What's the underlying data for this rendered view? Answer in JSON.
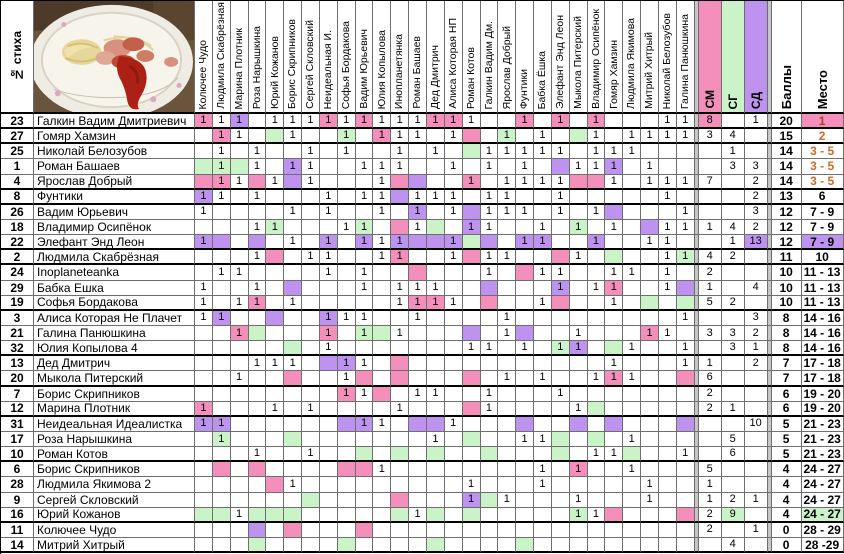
{
  "corner_label": "№ стиха",
  "photo_caption": "plate-with-spaghetti-sausage-ketchup",
  "judges": [
    "Колючее Чудо",
    "Людмила Скабрёзная",
    "Марина Плотник",
    "Роза Нарышкина",
    "Юрий Кожанов",
    "Борис Скрипников",
    "Сергей Скловский",
    "Неидеальная И.",
    "Софья Бордакова",
    "Вадим Юрьевич",
    "Юлия Копылова",
    "Инопланетянка",
    "Роман Башаев",
    "Дед Дмитрич",
    "Алиса Которая НП",
    "Роман Котов",
    "Галкин Вадим Дм.",
    "Ярослав Добрый",
    "Фунтики",
    "Бабка Ёшка",
    "Элефант Энд Леон",
    "Мыкола Питерский",
    "Владимир Осипёнок",
    "Гомяр Хамзин",
    "Людмила Якимова",
    "Митрий Хитрый",
    "Николай Белозубов",
    "Галина Панюшкина"
  ],
  "summary_headers": {
    "sm": "СМ",
    "sg": "СГ",
    "sd": "СД",
    "score": "Баллы",
    "place": "Место"
  },
  "colors": {
    "pink": "#F48FBB",
    "green": "#CBF3C8",
    "purple": "#BE93F0",
    "grey": "#c6c6c6",
    "place_first_text": "#A6442D",
    "place_top_text": "#CE6C28"
  },
  "legend_note": "vote cell tokens: 1=vote, p=pink(СМ), g=green(СГ), u=purple(СД)",
  "rows": [
    {
      "num": "23",
      "name": "Галкин Вадим Дмитриевич",
      "votes": [
        "1p",
        "1",
        "1u",
        "",
        "1",
        "1",
        "1",
        "1p",
        "1",
        "1p",
        "1",
        "1",
        "1",
        "1p",
        "1p",
        "1",
        "",
        "",
        "1p",
        "",
        "1p",
        "",
        "1p",
        "",
        "",
        "",
        "1",
        "1"
      ],
      "sm": "8",
      "sg": "",
      "sd": "1",
      "sm_hl": true,
      "sg_hl": false,
      "sd_hl": false,
      "score": "20",
      "place": "1",
      "place_cls": "pl-1",
      "group_end": true
    },
    {
      "num": "27",
      "name": "Гомяр Хамзин",
      "votes": [
        "",
        "1p",
        "1",
        "",
        "g",
        "1",
        "",
        "",
        "1g",
        "",
        "1p",
        "1",
        "1",
        "",
        "1",
        "p",
        "",
        "1g",
        "",
        "1",
        "",
        "g",
        "1",
        "",
        "1",
        "1",
        "1",
        "1"
      ],
      "sm": "3",
      "sg": "4",
      "sd": "",
      "sm_hl": false,
      "sg_hl": false,
      "sd_hl": false,
      "score": "15",
      "place": "2",
      "place_cls": "pl-top",
      "group_end": true
    },
    {
      "num": "25",
      "name": "Николай Белозубов",
      "votes": [
        "",
        "1",
        "",
        "1",
        "",
        "",
        "1",
        "",
        "1",
        "",
        "",
        "1",
        "",
        "1",
        "",
        "g",
        "1",
        "1",
        "1",
        "1",
        "1",
        "",
        "1",
        "1",
        "1",
        "",
        "",
        ""
      ],
      "sm": "",
      "sg": "1",
      "sd": "",
      "sm_hl": false,
      "sg_hl": false,
      "sd_hl": false,
      "score": "14",
      "place": "3 - 5",
      "place_cls": "pl-top",
      "group_end": false
    },
    {
      "num": "1",
      "name": "Роман Башаев",
      "votes": [
        "g",
        "1g",
        "g",
        "1",
        "",
        "1u",
        "1",
        "",
        "",
        "1",
        "1",
        "1",
        "",
        "",
        "1",
        "",
        "1",
        "",
        "1",
        "",
        "u",
        "1",
        "1",
        "1u",
        "",
        "1",
        "",
        ""
      ],
      "sm": "",
      "sg": "3",
      "sd": "3",
      "sm_hl": false,
      "sg_hl": false,
      "sd_hl": false,
      "score": "14",
      "place": "3 - 5",
      "place_cls": "pl-top",
      "group_end": false
    },
    {
      "num": "4",
      "name": "Ярослав Добрый",
      "votes": [
        "p",
        "1p",
        "1",
        "p",
        "1",
        "u",
        "1",
        "",
        "",
        "",
        "1",
        "p",
        "u",
        "",
        "",
        "1p",
        "",
        "1",
        "1",
        "1",
        "1",
        "p",
        "p",
        "1",
        "",
        "1",
        "1",
        "1"
      ],
      "sm": "7",
      "sg": "",
      "sd": "2",
      "sm_hl": false,
      "sg_hl": false,
      "sd_hl": false,
      "score": "14",
      "place": "3 - 5",
      "place_cls": "pl-top",
      "group_end": true
    },
    {
      "num": "8",
      "name": "Фунтики",
      "votes": [
        "1u",
        "1",
        "",
        "1",
        "",
        "",
        "",
        "1",
        "",
        "1",
        "1",
        "u",
        "1",
        "1",
        "1",
        "",
        "1",
        "1",
        "",
        "",
        "1",
        "",
        "",
        "",
        "",
        "",
        "1",
        ""
      ],
      "sm": "",
      "sg": "",
      "sd": "2",
      "sm_hl": false,
      "sg_hl": false,
      "sd_hl": false,
      "score": "13",
      "place": "6",
      "place_cls": "",
      "group_end": true
    },
    {
      "num": "26",
      "name": "Вадим Юрьевич",
      "votes": [
        "1",
        "",
        "",
        "",
        "",
        "1",
        "",
        "1",
        "",
        "",
        "1",
        "",
        "1u",
        "",
        "1",
        "u",
        "1",
        "1",
        "1",
        "",
        "1",
        "",
        "1",
        "u",
        "",
        "",
        "",
        "1"
      ],
      "sm": "",
      "sg": "",
      "sd": "3",
      "sm_hl": false,
      "sg_hl": false,
      "sd_hl": false,
      "score": "12",
      "place": "7 - 9",
      "place_cls": "",
      "group_end": false
    },
    {
      "num": "18",
      "name": "Владимир Осипёнок",
      "votes": [
        "",
        "",
        "",
        "1",
        "1g",
        "",
        "",
        "",
        "1",
        "1g",
        "",
        "p",
        "1",
        "g",
        "",
        "1u",
        "1",
        "",
        "",
        "1",
        "",
        "1g",
        "",
        "1",
        "",
        "u",
        "1",
        "1"
      ],
      "sm": "1",
      "sg": "4",
      "sd": "2",
      "sm_hl": false,
      "sg_hl": false,
      "sd_hl": false,
      "score": "12",
      "place": "7 - 9",
      "place_cls": "",
      "group_end": false
    },
    {
      "num": "22",
      "name": "Элефант Энд Леон",
      "votes": [
        "1u",
        "u",
        "",
        "u",
        "",
        "1",
        "",
        "1u",
        "",
        "1u",
        "1",
        "1u",
        "u",
        "u",
        "1u",
        "g",
        "u",
        "",
        "1u",
        "1u",
        "",
        "",
        "1u",
        "",
        "",
        "1",
        "1",
        ""
      ],
      "sm": "",
      "sg": "1",
      "sd": "13",
      "sm_hl": false,
      "sg_hl": false,
      "sd_hl": true,
      "score": "12",
      "place": "7 - 9",
      "place_cls": "pl-u",
      "group_end": true
    },
    {
      "num": "2",
      "name": "Людмила Скабрёзная",
      "votes": [
        "",
        "",
        "",
        "1",
        "p",
        "",
        "1",
        "1",
        "",
        "",
        "1",
        "1p",
        "",
        "",
        "1",
        "p",
        "1",
        "1",
        "",
        "",
        "p",
        "1",
        "",
        "g",
        "",
        "",
        "1",
        "1g"
      ],
      "sm": "4",
      "sg": "2",
      "sd": "",
      "sm_hl": false,
      "sg_hl": false,
      "sd_hl": false,
      "score": "11",
      "place": "10",
      "place_cls": "",
      "group_end": true
    },
    {
      "num": "24",
      "name": "Inoplaneteanka",
      "votes": [
        "",
        "1",
        "1",
        "",
        "",
        "",
        "",
        "1",
        "",
        "1",
        "",
        "",
        "p",
        "",
        "",
        "",
        "1",
        "",
        "p",
        "1",
        "1",
        "",
        "",
        "1",
        "1",
        "",
        "1",
        ""
      ],
      "sm": "2",
      "sg": "",
      "sd": "",
      "sm_hl": false,
      "sg_hl": false,
      "sd_hl": false,
      "score": "10",
      "place": "11 - 13",
      "place_cls": "",
      "group_end": false
    },
    {
      "num": "29",
      "name": "Бабка Ешка",
      "votes": [
        "1",
        "",
        "",
        "1",
        "",
        "u",
        "",
        "",
        "",
        "1",
        "",
        "1",
        "1",
        "1",
        "",
        "",
        "u",
        "",
        "",
        "",
        "1u",
        "",
        "1",
        "1p",
        "",
        "",
        "1",
        "u"
      ],
      "sm": "1",
      "sg": "",
      "sd": "4",
      "sm_hl": false,
      "sg_hl": false,
      "sd_hl": false,
      "score": "10",
      "place": "11 - 13",
      "place_cls": "",
      "group_end": false
    },
    {
      "num": "19",
      "name": "Софья Бордакова",
      "votes": [
        "1",
        "",
        "1",
        "1p",
        "",
        "1",
        "",
        "",
        "",
        "",
        "",
        "1",
        "1p",
        "1p",
        "1",
        "",
        "p",
        "",
        "",
        "1",
        "p",
        "",
        "",
        "1",
        "",
        "g",
        "",
        "g"
      ],
      "sm": "5",
      "sg": "2",
      "sd": "",
      "sm_hl": false,
      "sg_hl": false,
      "sd_hl": false,
      "score": "10",
      "place": "11 - 13",
      "place_cls": "",
      "group_end": true
    },
    {
      "num": "3",
      "name": "Алиса Которая Не Плачет",
      "votes": [
        "1",
        "1u",
        "",
        "",
        "u",
        "",
        "",
        "1u",
        "1",
        "1",
        "",
        "",
        "1",
        "",
        "",
        "",
        "",
        "1",
        "",
        "",
        "",
        "",
        "",
        "",
        "",
        "",
        "",
        "1"
      ],
      "sm": "",
      "sg": "",
      "sd": "3",
      "sm_hl": false,
      "sg_hl": false,
      "sd_hl": false,
      "score": "8",
      "place": "14 - 16",
      "place_cls": "",
      "group_end": false
    },
    {
      "num": "21",
      "name": "Галина Панюшкина",
      "votes": [
        "",
        "",
        "1p",
        "g",
        "",
        "",
        "",
        "1p",
        "",
        "1g",
        "g",
        "1",
        "",
        "",
        "",
        "u",
        "",
        "1",
        "u",
        "",
        "",
        "1",
        "",
        "",
        "",
        "1p",
        "1",
        ""
      ],
      "sm": "3",
      "sg": "3",
      "sd": "2",
      "sm_hl": false,
      "sg_hl": false,
      "sd_hl": false,
      "score": "8",
      "place": "14 - 16",
      "place_cls": "",
      "group_end": false
    },
    {
      "num": "32",
      "name": "Юлия Копылова 4",
      "votes": [
        "",
        "",
        "",
        "",
        "",
        "g",
        "",
        "1",
        "",
        "",
        "",
        "",
        "",
        "",
        "",
        "1",
        "1",
        "",
        "1",
        "",
        "1g",
        "1u",
        "",
        "g",
        "1",
        "",
        "",
        "1"
      ],
      "sm": "",
      "sg": "3",
      "sd": "1",
      "sm_hl": false,
      "sg_hl": false,
      "sd_hl": false,
      "score": "8",
      "place": "14 - 16",
      "place_cls": "",
      "group_end": true
    },
    {
      "num": "13",
      "name": "Дед Дмитрич",
      "votes": [
        "",
        "",
        "",
        "1",
        "1",
        "1",
        "",
        "u",
        "1u",
        "1",
        "",
        "p",
        "",
        "",
        "",
        "",
        "",
        "",
        "",
        "",
        "",
        "",
        "",
        "1",
        "",
        "",
        "",
        "1"
      ],
      "sm": "1",
      "sg": "",
      "sd": "2",
      "sm_hl": false,
      "sg_hl": false,
      "sd_hl": false,
      "score": "7",
      "place": "17 - 18",
      "place_cls": "",
      "group_end": false
    },
    {
      "num": "20",
      "name": "Мыкола Питерский",
      "votes": [
        "",
        "",
        "1",
        "",
        "",
        "p",
        "",
        "",
        "1",
        "p",
        "",
        "p",
        "",
        "",
        "",
        "p",
        "",
        "1",
        "",
        "1",
        "",
        "",
        "1",
        "1p",
        "1",
        "",
        "",
        "p"
      ],
      "sm": "6",
      "sg": "",
      "sd": "",
      "sm_hl": false,
      "sg_hl": false,
      "sd_hl": false,
      "score": "7",
      "place": "17 - 18",
      "place_cls": "",
      "group_end": true
    },
    {
      "num": "7",
      "name": "Борис Скрипников",
      "votes": [
        "",
        "",
        "",
        "",
        "",
        "",
        "",
        "",
        "1p",
        "1",
        "p",
        "",
        "1",
        "1",
        "",
        "",
        "1",
        "",
        "",
        "",
        "1",
        "",
        "",
        "",
        "",
        "",
        "",
        ""
      ],
      "sm": "2",
      "sg": "",
      "sd": "",
      "sm_hl": false,
      "sg_hl": false,
      "sd_hl": false,
      "score": "6",
      "place": "19 - 20",
      "place_cls": "",
      "group_end": false
    },
    {
      "num": "12",
      "name": "Марина Плотник",
      "votes": [
        "1p",
        "",
        "",
        "",
        "1",
        "",
        "1",
        "",
        "",
        "",
        "",
        "1",
        "",
        "",
        "",
        "p",
        "1",
        "",
        "",
        "",
        "",
        "1",
        "g",
        "",
        "",
        "",
        "",
        ""
      ],
      "sm": "2",
      "sg": "1",
      "sd": "",
      "sm_hl": false,
      "sg_hl": false,
      "sd_hl": false,
      "score": "6",
      "place": "19 - 20",
      "place_cls": "",
      "group_end": true
    },
    {
      "num": "31",
      "name": "Неидеальная Идеалистка",
      "votes": [
        "1u",
        "1u",
        "",
        "",
        "",
        "",
        "",
        "",
        "u",
        "1u",
        "1",
        "",
        "u",
        "u",
        "1",
        "",
        "",
        "",
        "u",
        "",
        "",
        "u",
        "",
        "u",
        "",
        "",
        "",
        "u"
      ],
      "sm": "",
      "sg": "",
      "sd": "10",
      "sm_hl": false,
      "sg_hl": false,
      "sd_hl": false,
      "score": "5",
      "place": "21 - 23",
      "place_cls": "",
      "group_end": false
    },
    {
      "num": "17",
      "name": "Роза Нарышкина",
      "votes": [
        "",
        "1g",
        "",
        "",
        "",
        "g",
        "",
        "",
        "",
        "",
        "",
        "",
        "",
        "1",
        "",
        "g",
        "",
        "",
        "1",
        "1",
        "g",
        "",
        "g",
        "",
        "1",
        "",
        "",
        ""
      ],
      "sm": "",
      "sg": "5",
      "sd": "",
      "sm_hl": false,
      "sg_hl": false,
      "sd_hl": false,
      "score": "5",
      "place": "21 - 23",
      "place_cls": "",
      "group_end": false
    },
    {
      "num": "10",
      "name": "Роман Котов",
      "votes": [
        "",
        "",
        "",
        "1",
        "",
        "",
        "1",
        "",
        "",
        "g",
        "",
        "g",
        "",
        "g",
        "",
        "",
        "g",
        "",
        "",
        "",
        "g",
        "",
        "1",
        "1",
        "g",
        "",
        "",
        "1"
      ],
      "sm": "",
      "sg": "6",
      "sd": "",
      "sm_hl": false,
      "sg_hl": false,
      "sd_hl": false,
      "score": "5",
      "place": "21 - 23",
      "place_cls": "",
      "group_end": true
    },
    {
      "num": "6",
      "name": "Борис Скрипников",
      "votes": [
        "",
        "p",
        "",
        "p",
        "",
        "",
        "",
        "",
        "p",
        "p",
        "1",
        "",
        "",
        "",
        "",
        "",
        "",
        "",
        "",
        "1",
        "",
        "1p",
        "",
        "",
        "1",
        "",
        "",
        ""
      ],
      "sm": "5",
      "sg": "",
      "sd": "",
      "sm_hl": false,
      "sg_hl": false,
      "sd_hl": false,
      "score": "4",
      "place": "24 - 27",
      "place_cls": "",
      "group_end": false
    },
    {
      "num": "28",
      "name": "Людмила Якимова 2",
      "votes": [
        "",
        "",
        "",
        "",
        "p",
        "1",
        "",
        "",
        "",
        "",
        "",
        "",
        "",
        "",
        "",
        "1",
        "",
        "",
        "",
        "1",
        "",
        "",
        "",
        "",
        "",
        "1",
        "",
        ""
      ],
      "sm": "1",
      "sg": "",
      "sd": "",
      "sm_hl": false,
      "sg_hl": false,
      "sd_hl": false,
      "score": "4",
      "place": "24 - 27",
      "place_cls": "",
      "group_end": false
    },
    {
      "num": "9",
      "name": "Сергей Скловский",
      "votes": [
        "",
        "",
        "",
        "",
        "",
        "",
        "g",
        "",
        "",
        "",
        "",
        "p",
        "",
        "",
        "",
        "1u",
        "g",
        "1",
        "",
        "",
        "",
        "1",
        "",
        "",
        "",
        "1",
        "",
        ""
      ],
      "sm": "1",
      "sg": "2",
      "sd": "1",
      "sm_hl": false,
      "sg_hl": false,
      "sd_hl": false,
      "score": "4",
      "place": "24 - 27",
      "place_cls": "",
      "group_end": false
    },
    {
      "num": "16",
      "name": "Юрий Кожанов",
      "votes": [
        "g",
        "g",
        "1",
        "g",
        "g",
        "g",
        "",
        "",
        "",
        "",
        "",
        "g",
        "1",
        "g",
        "",
        "g",
        "",
        "",
        "",
        "",
        "",
        "1g",
        "1",
        "p",
        "",
        "",
        "",
        "p"
      ],
      "sm": "2",
      "sg": "9",
      "sd": "",
      "sm_hl": false,
      "sg_hl": true,
      "sd_hl": false,
      "score": "4",
      "place": "24 - 27",
      "place_cls": "pl-g",
      "group_end": true
    },
    {
      "num": "11",
      "name": "Колючее Чудо",
      "votes": [
        "",
        "",
        "",
        "u",
        "",
        "p",
        "",
        "",
        "",
        "p",
        "",
        "",
        "",
        "",
        "",
        "",
        "",
        "",
        "",
        "",
        "",
        "",
        "",
        "",
        "",
        "",
        "",
        ""
      ],
      "sm": "2",
      "sg": "",
      "sd": "1",
      "sm_hl": false,
      "sg_hl": false,
      "sd_hl": false,
      "score": "0",
      "place": "28 - 29",
      "place_cls": "",
      "group_end": false
    },
    {
      "num": "14",
      "name": "Митрий Хитрый",
      "votes": [
        "",
        "",
        "",
        "g",
        "",
        "",
        "",
        "",
        "g",
        "",
        "",
        "",
        "",
        "g",
        "",
        "",
        "",
        "",
        "g",
        "",
        "",
        "",
        "",
        "",
        "",
        "",
        "",
        ""
      ],
      "sm": "",
      "sg": "4",
      "sd": "",
      "sm_hl": false,
      "sg_hl": false,
      "sd_hl": false,
      "score": "0",
      "place": "28 -29",
      "place_cls": "",
      "group_end": true
    }
  ]
}
